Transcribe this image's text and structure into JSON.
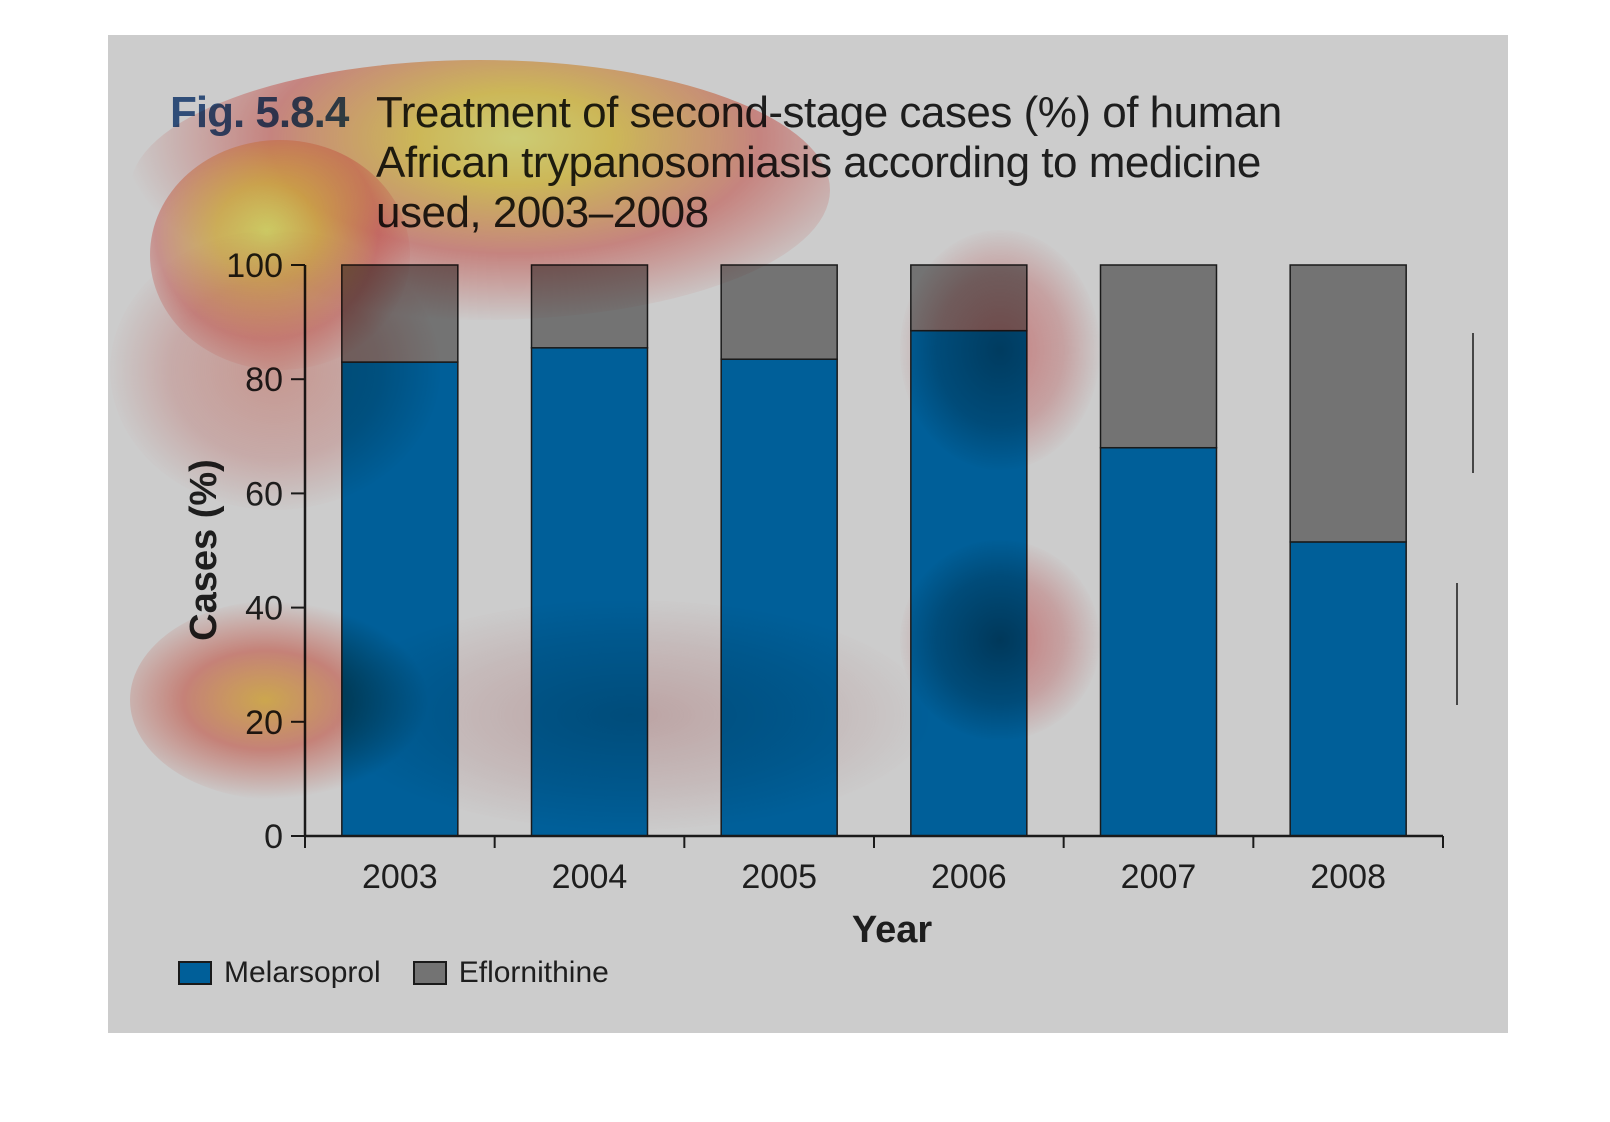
{
  "figure": {
    "label": "Fig. 5.8.4",
    "title": "Treatment of second-stage cases (%) of human African trypanosomiasis according to medicine used, 2003–2008"
  },
  "colors": {
    "panel": "#cccccc",
    "melarsoprol": "#005f99",
    "eflornithine": "#737373",
    "axis": "#1a1a1a",
    "fig_label": "#2f4d78"
  },
  "chart_data": {
    "type": "bar",
    "stacked": true,
    "title": "Treatment of second-stage cases (%) of human African trypanosomiasis according to medicine used, 2003–2008",
    "xlabel": "Year",
    "ylabel": "Cases (%)",
    "categories": [
      "2003",
      "2004",
      "2005",
      "2006",
      "2007",
      "2008"
    ],
    "series": [
      {
        "name": "Melarsoprol",
        "color": "#005f99",
        "values": [
          83,
          85.5,
          83.5,
          88.5,
          68,
          51.5
        ]
      },
      {
        "name": "Eflornithine",
        "color": "#737373",
        "values": [
          17,
          14.5,
          16.5,
          11.5,
          32,
          48.5
        ]
      }
    ],
    "ylim": [
      0,
      100
    ],
    "yticks": [
      0,
      20,
      40,
      60,
      80,
      100
    ],
    "grid": false,
    "legend": "bottom-left"
  }
}
